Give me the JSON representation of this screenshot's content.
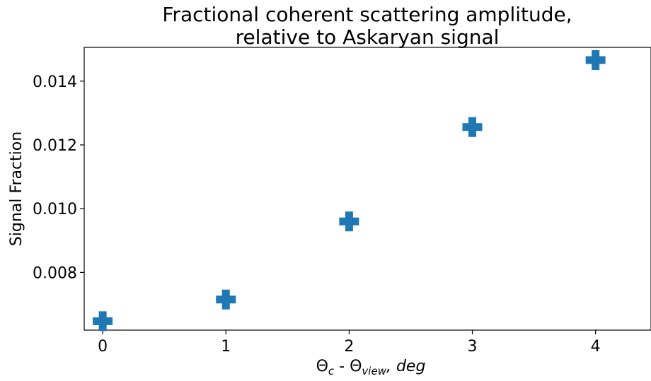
{
  "chart_data": {
    "type": "scatter",
    "title_lines": [
      "Fractional coherent scattering amplitude,",
      "relative to Askaryan signal"
    ],
    "ylabel": "Signal Fraction",
    "xlabel": {
      "theta": "Θ",
      "c_sub": "c",
      "minus": " - ",
      "theta2": "Θ",
      "view_sub": "view",
      "unit": ", deg"
    },
    "xlim": [
      -0.15,
      4.45
    ],
    "ylim": [
      0.00619,
      0.01506
    ],
    "x_ticks": [
      0,
      1,
      2,
      3,
      4
    ],
    "x_tick_labels": [
      "0",
      "1",
      "2",
      "3",
      "4"
    ],
    "y_ticks": [
      0.008,
      0.01,
      0.012,
      0.014
    ],
    "y_tick_labels": [
      "0.008",
      "0.010",
      "0.012",
      "0.014"
    ],
    "marker": "plus-filled",
    "color": "#1f77b4",
    "grid": false,
    "series": [
      {
        "x": [
          0,
          1,
          2,
          3,
          4
        ],
        "y": [
          0.00647,
          0.00715,
          0.0096,
          0.01256,
          0.01466
        ]
      }
    ]
  }
}
